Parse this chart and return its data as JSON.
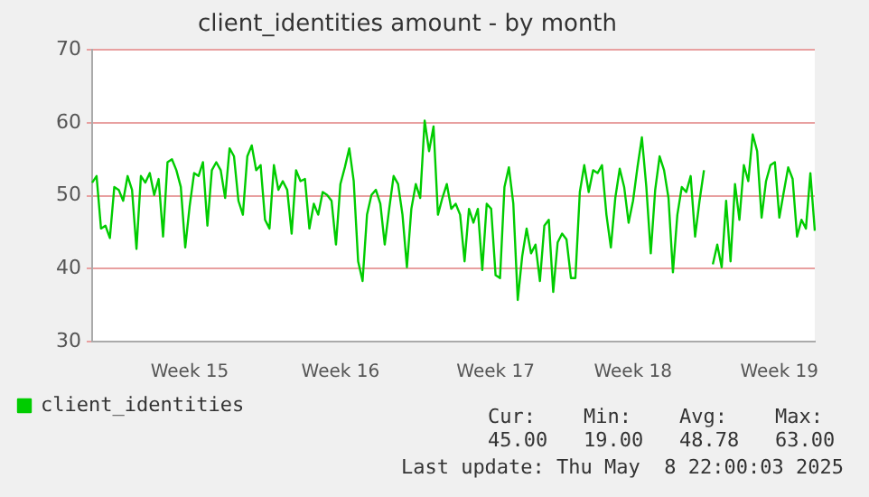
{
  "chart_data": {
    "type": "line",
    "title": "client_identities amount - by month",
    "categories": [
      null,
      null,
      null,
      null,
      null,
      null,
      null,
      null,
      null,
      null,
      null,
      null,
      null,
      null,
      null,
      null,
      null,
      null,
      null,
      null,
      null,
      null,
      "Week 15",
      null,
      null,
      null,
      null,
      null,
      null,
      null,
      null,
      null,
      null,
      null,
      null,
      null,
      null,
      null,
      null,
      null,
      null,
      null,
      null,
      null,
      null,
      null,
      null,
      null,
      null,
      null,
      null,
      null,
      null,
      null,
      null,
      null,
      "Week 16",
      null,
      null,
      null,
      null,
      null,
      null,
      null,
      null,
      null,
      null,
      null,
      null,
      null,
      null,
      null,
      null,
      null,
      null,
      null,
      null,
      null,
      null,
      null,
      null,
      null,
      null,
      null,
      null,
      null,
      null,
      null,
      null,
      null,
      null,
      "Week 17",
      null,
      null,
      null,
      null,
      null,
      null,
      null,
      null,
      null,
      null,
      null,
      null,
      null,
      null,
      null,
      null,
      null,
      null,
      null,
      null,
      null,
      null,
      null,
      null,
      null,
      null,
      null,
      null,
      null,
      null,
      "Week 18",
      null,
      null,
      null,
      null,
      null,
      null,
      null,
      null,
      null,
      null,
      null,
      null,
      null,
      null,
      null,
      null,
      null,
      null,
      null,
      null,
      null,
      null,
      null,
      null,
      null,
      null,
      null,
      null,
      null,
      null,
      null,
      null,
      "Week 19",
      null,
      null,
      null,
      null,
      null,
      null,
      null,
      null
    ],
    "ylim": [
      30,
      70
    ],
    "yticks": [
      30,
      40,
      50,
      60,
      70
    ],
    "grid": "y",
    "legend": "bottom",
    "marker": "none",
    "series": [
      {
        "name": "client_identities",
        "color": "#00cc00",
        "values": [
          51.8,
          52.7,
          45.5,
          45.9,
          44.2,
          51.2,
          50.8,
          49.3,
          52.7,
          50.8,
          42.7,
          52.7,
          51.8,
          53.1,
          50.1,
          52.3,
          44.4,
          54.6,
          55,
          53.5,
          51.2,
          42.9,
          48.6,
          53.1,
          52.7,
          54.6,
          45.9,
          53.5,
          54.6,
          53.5,
          49.7,
          56.5,
          55.4,
          49.3,
          47.4,
          55.4,
          56.9,
          53.5,
          54.2,
          46.7,
          45.5,
          54.2,
          50.8,
          52,
          50.8,
          44.8,
          53.5,
          52,
          52.3,
          45.5,
          48.9,
          47.4,
          50.5,
          50.1,
          49.3,
          43.3,
          51.6,
          53.9,
          56.5,
          52,
          41,
          38.3,
          47.4,
          50.1,
          50.8,
          48.9,
          43.3,
          48.2,
          52.7,
          51.6,
          47.4,
          40.2,
          48.2,
          51.6,
          49.7,
          60.3,
          56.1,
          59.5,
          47.4,
          49.7,
          51.6,
          48.2,
          48.9,
          47.4,
          41,
          48.2,
          46.3,
          48.2,
          39.8,
          48.9,
          48.2,
          39.1,
          38.7,
          51.2,
          53.9,
          48.9,
          35.7,
          41.7,
          45.5,
          42.1,
          43.3,
          38.3,
          45.9,
          46.7,
          36.8,
          43.6,
          44.8,
          44,
          38.7,
          38.7,
          50.5,
          54.2,
          50.5,
          53.5,
          53.1,
          54.2,
          47.4,
          42.9,
          49.7,
          53.7,
          51.2,
          46.3,
          49.3,
          53.9,
          58,
          51.2,
          42.1,
          50.8,
          55.4,
          53.5,
          49.7,
          39.5,
          47.4,
          51.2,
          50.5,
          52.7,
          44.4,
          49.3,
          53.5,
          null,
          40.6,
          43.3,
          40.2,
          49.3,
          41,
          51.6,
          46.7,
          54.2,
          52,
          58.4,
          56.1,
          47,
          52,
          54.2,
          54.6,
          47,
          50.5,
          53.9,
          52.3,
          44.4,
          46.7,
          45.5,
          53.1,
          45.2
        ]
      }
    ],
    "annotations": [
      "Cur: 45.00",
      "Min: 19.00",
      "Avg: 48.78",
      "Max: 63.00",
      "Last update: Thu May  8 22:00:03 2025"
    ]
  }
}
